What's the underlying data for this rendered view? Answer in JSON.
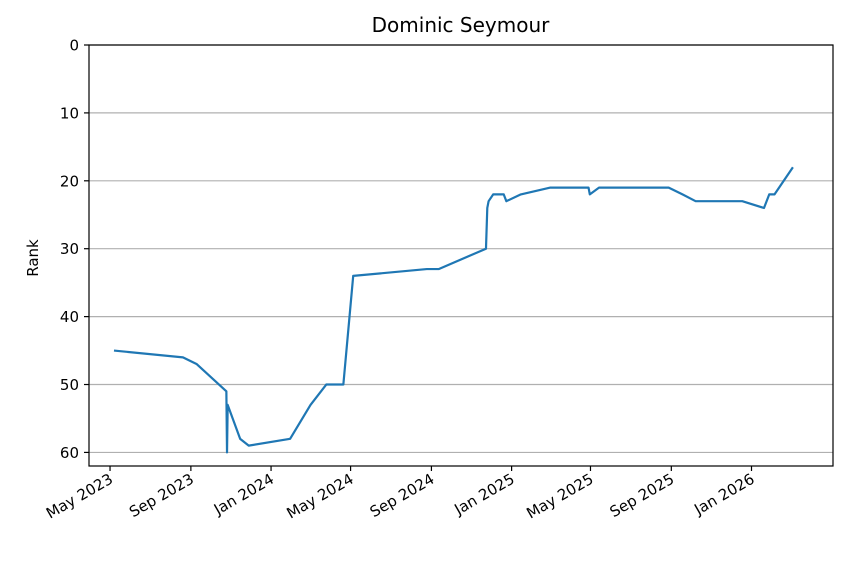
{
  "chart_data": {
    "type": "line",
    "title": "Dominic Seymour",
    "xlabel": "",
    "ylabel": "Rank",
    "y_inverted": true,
    "ylim": [
      0,
      62
    ],
    "xlim": [
      "2023-03-30",
      "2026-05-05"
    ],
    "grid": "horizontal",
    "x_ticks": [
      "2023-05-01",
      "2023-09-01",
      "2024-01-01",
      "2024-05-01",
      "2024-09-01",
      "2025-01-01",
      "2025-05-01",
      "2025-09-01",
      "2026-01-01"
    ],
    "x_tick_labels": [
      "May 2023",
      "Sep 2023",
      "Jan 2024",
      "May 2024",
      "Sep 2024",
      "Jan 2025",
      "May 2025",
      "Sep 2025",
      "Jan 2026"
    ],
    "y_ticks": [
      0,
      10,
      20,
      30,
      40,
      50,
      60
    ],
    "series": [
      {
        "color": "#1f77b4",
        "points": [
          [
            "2023-05-07",
            45
          ],
          [
            "2023-08-20",
            46
          ],
          [
            "2023-09-10",
            47
          ],
          [
            "2023-10-25",
            51
          ],
          [
            "2023-10-26",
            60
          ],
          [
            "2023-10-27",
            53
          ],
          [
            "2023-11-15",
            58
          ],
          [
            "2023-11-28",
            59
          ],
          [
            "2024-01-30",
            58
          ],
          [
            "2024-03-01",
            53
          ],
          [
            "2024-03-25",
            50
          ],
          [
            "2024-04-20",
            50
          ],
          [
            "2024-05-05",
            34
          ],
          [
            "2024-08-25",
            33
          ],
          [
            "2024-09-12",
            33
          ],
          [
            "2024-11-23",
            30
          ],
          [
            "2024-11-25",
            24
          ],
          [
            "2024-11-27",
            23
          ],
          [
            "2024-12-04",
            22
          ],
          [
            "2024-12-20",
            22
          ],
          [
            "2024-12-24",
            23
          ],
          [
            "2025-01-15",
            22
          ],
          [
            "2025-03-01",
            21
          ],
          [
            "2025-04-28",
            21
          ],
          [
            "2025-04-30",
            22
          ],
          [
            "2025-05-14",
            21
          ],
          [
            "2025-08-28",
            21
          ],
          [
            "2025-09-18",
            22
          ],
          [
            "2025-10-08",
            23
          ],
          [
            "2025-12-18",
            23
          ],
          [
            "2026-01-20",
            24
          ],
          [
            "2026-01-28",
            22
          ],
          [
            "2026-02-05",
            22
          ],
          [
            "2026-03-05",
            18
          ]
        ]
      }
    ]
  }
}
